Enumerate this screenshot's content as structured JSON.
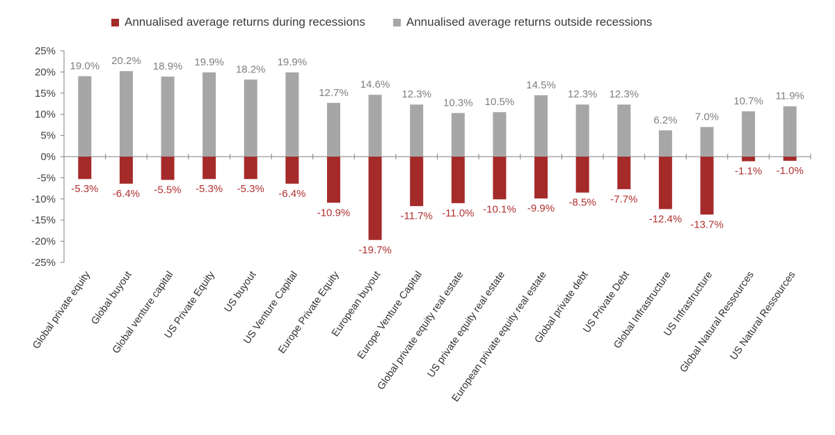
{
  "chart_data": {
    "type": "bar",
    "title": "",
    "xlabel": "",
    "ylabel": "",
    "ylim": [
      -25,
      25
    ],
    "y_ticks": [
      {
        "value": 25,
        "label": "25%"
      },
      {
        "value": 20,
        "label": "20%"
      },
      {
        "value": 15,
        "label": "15%"
      },
      {
        "value": 10,
        "label": "10%"
      },
      {
        "value": 5,
        "label": "5%"
      },
      {
        "value": 0,
        "label": "0%"
      },
      {
        "value": -5,
        "label": "-5%"
      },
      {
        "value": -10,
        "label": "-10%"
      },
      {
        "value": -15,
        "label": "-15%"
      },
      {
        "value": -20,
        "label": "-20%"
      },
      {
        "value": -25,
        "label": "-25%"
      }
    ],
    "categories": [
      "Global private equity",
      "Global buyout",
      "Global venture capital",
      "US Private Equity",
      "US buyout",
      "US Venture Capital",
      "Europe Private Equity",
      "European buyout",
      "Europe Venture Capital",
      "Global private equity real estate",
      "US private equity real estate",
      "European private equity real estate",
      "Global private debt",
      "US Private Debt",
      "Global Infrastructure",
      "US Infrastructure",
      "Global Natural Ressources",
      "US Natural Ressources"
    ],
    "series": [
      {
        "name": "Annualised average returns during recessions",
        "color": "#a52a2a",
        "values": [
          -5.3,
          -6.4,
          -5.5,
          -5.3,
          -5.3,
          -6.4,
          -10.9,
          -19.7,
          -11.7,
          -11.0,
          -10.1,
          -9.9,
          -8.5,
          -7.7,
          -12.4,
          -13.7,
          -1.1,
          -1.0
        ],
        "labels": [
          "-5.3%",
          "-6.4%",
          "-5.5%",
          "-5.3%",
          "-5.3%",
          "-6.4%",
          "-10.9%",
          "-19.7%",
          "-11.7%",
          "-11.0%",
          "-10.1%",
          "-9.9%",
          "-8.5%",
          "-7.7%",
          "-12.4%",
          "-13.7%",
          "-1.1%",
          "-1.0%"
        ]
      },
      {
        "name": "Annualised average returns outside recessions",
        "color": "#a6a6a6",
        "values": [
          19.0,
          20.2,
          18.9,
          19.9,
          18.2,
          19.9,
          12.7,
          14.6,
          12.3,
          10.3,
          10.5,
          14.5,
          12.3,
          12.3,
          6.2,
          7.0,
          10.7,
          11.9
        ],
        "labels": [
          "19.0%",
          "20.2%",
          "18.9%",
          "19.9%",
          "18.2%",
          "19.9%",
          "12.7%",
          "14.6%",
          "12.3%",
          "10.3%",
          "10.5%",
          "14.5%",
          "12.3%",
          "12.3%",
          "6.2%",
          "7.0%",
          "10.7%",
          "11.9%"
        ]
      }
    ],
    "legend_position": "top"
  },
  "legend": {
    "during_label": "Annualised average returns during recessions",
    "outside_label": "Annualised average returns outside recessions",
    "during_color": "#a52a2a",
    "outside_color": "#a6a6a6"
  }
}
